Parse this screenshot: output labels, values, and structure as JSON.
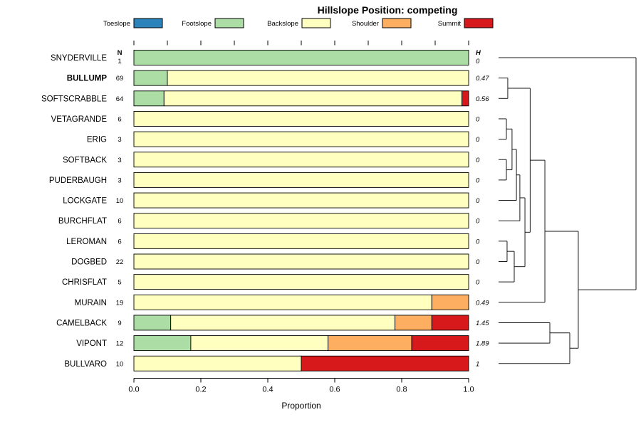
{
  "title": "Hillslope Position: competing",
  "chart_data": {
    "type": "bar",
    "variant": "stacked-horizontal-with-dendrogram",
    "title": "Hillslope Position: competing",
    "xlabel": "Proportion",
    "xlim": [
      0,
      1
    ],
    "xticks": [
      0.0,
      0.2,
      0.4,
      0.6,
      0.8,
      1.0
    ],
    "minor_top_ticks_step": 0.1,
    "legend_position": "top",
    "classes": [
      "Toeslope",
      "Footslope",
      "Backslope",
      "Shoulder",
      "Summit"
    ],
    "class_colors": {
      "Toeslope": "#2B83BA",
      "Footslope": "#ABDDA4",
      "Backslope": "#FFFFBF",
      "Shoulder": "#FDAE61",
      "Summit": "#D7191C"
    },
    "columns": {
      "n_header": "N",
      "h_header": "H"
    },
    "rows": [
      {
        "name": "SNYDERVILLE",
        "n": 1,
        "h": "0",
        "bold": false,
        "segments": [
          {
            "class": "Footslope",
            "value": 1.0
          }
        ]
      },
      {
        "name": "BULLUMP",
        "n": 69,
        "h": "0.47",
        "bold": true,
        "segments": [
          {
            "class": "Footslope",
            "value": 0.1
          },
          {
            "class": "Backslope",
            "value": 0.9
          }
        ]
      },
      {
        "name": "SOFTSCRABBLE",
        "n": 64,
        "h": "0.56",
        "bold": false,
        "segments": [
          {
            "class": "Footslope",
            "value": 0.09
          },
          {
            "class": "Backslope",
            "value": 0.89
          },
          {
            "class": "Summit",
            "value": 0.02
          }
        ]
      },
      {
        "name": "VETAGRANDE",
        "n": 6,
        "h": "0",
        "bold": false,
        "segments": [
          {
            "class": "Backslope",
            "value": 1.0
          }
        ]
      },
      {
        "name": "ERIG",
        "n": 3,
        "h": "0",
        "bold": false,
        "segments": [
          {
            "class": "Backslope",
            "value": 1.0
          }
        ]
      },
      {
        "name": "SOFTBACK",
        "n": 3,
        "h": "0",
        "bold": false,
        "segments": [
          {
            "class": "Backslope",
            "value": 1.0
          }
        ]
      },
      {
        "name": "PUDERBAUGH",
        "n": 3,
        "h": "0",
        "bold": false,
        "segments": [
          {
            "class": "Backslope",
            "value": 1.0
          }
        ]
      },
      {
        "name": "LOCKGATE",
        "n": 10,
        "h": "0",
        "bold": false,
        "segments": [
          {
            "class": "Backslope",
            "value": 1.0
          }
        ]
      },
      {
        "name": "BURCHFLAT",
        "n": 6,
        "h": "0",
        "bold": false,
        "segments": [
          {
            "class": "Backslope",
            "value": 1.0
          }
        ]
      },
      {
        "name": "LEROMAN",
        "n": 6,
        "h": "0",
        "bold": false,
        "segments": [
          {
            "class": "Backslope",
            "value": 1.0
          }
        ]
      },
      {
        "name": "DOGBED",
        "n": 22,
        "h": "0",
        "bold": false,
        "segments": [
          {
            "class": "Backslope",
            "value": 1.0
          }
        ]
      },
      {
        "name": "CHRISFLAT",
        "n": 5,
        "h": "0",
        "bold": false,
        "segments": [
          {
            "class": "Backslope",
            "value": 1.0
          }
        ]
      },
      {
        "name": "MURAIN",
        "n": 19,
        "h": "0.49",
        "bold": false,
        "segments": [
          {
            "class": "Backslope",
            "value": 0.89
          },
          {
            "class": "Shoulder",
            "value": 0.11
          }
        ]
      },
      {
        "name": "CAMELBACK",
        "n": 9,
        "h": "1.45",
        "bold": false,
        "segments": [
          {
            "class": "Footslope",
            "value": 0.11
          },
          {
            "class": "Backslope",
            "value": 0.67
          },
          {
            "class": "Shoulder",
            "value": 0.11
          },
          {
            "class": "Summit",
            "value": 0.11
          }
        ]
      },
      {
        "name": "VIPONT",
        "n": 12,
        "h": "1.89",
        "bold": false,
        "segments": [
          {
            "class": "Footslope",
            "value": 0.17
          },
          {
            "class": "Backslope",
            "value": 0.41
          },
          {
            "class": "Shoulder",
            "value": 0.25
          },
          {
            "class": "Summit",
            "value": 0.17
          }
        ]
      },
      {
        "name": "BULLVARO",
        "n": 10,
        "h": "1",
        "bold": false,
        "segments": [
          {
            "class": "Backslope",
            "value": 0.5
          },
          {
            "class": "Summit",
            "value": 0.5
          }
        ]
      }
    ],
    "dendrogram": {
      "merges": [
        {
          "id": "A",
          "a": "BULLUMP",
          "b": "SOFTSCRABBLE",
          "h": 0.067
        },
        {
          "id": "B",
          "a": "VETAGRANDE",
          "b": "ERIG",
          "h": 0.057
        },
        {
          "id": "C",
          "a": "SOFTBACK",
          "b": "PUDERBAUGH",
          "h": 0.057
        },
        {
          "id": "D",
          "a": "B",
          "b": "C",
          "h": 0.098
        },
        {
          "id": "E",
          "a": "D",
          "b": "LOCKGATE",
          "h": 0.13
        },
        {
          "id": "F",
          "a": "LEROMAN",
          "b": "DOGBED",
          "h": 0.062
        },
        {
          "id": "G",
          "a": "F",
          "b": "CHRISFLAT",
          "h": 0.114
        },
        {
          "id": "H",
          "a": "E",
          "b": "BURCHFLAT",
          "h": 0.155
        },
        {
          "id": "I",
          "a": "H",
          "b": "G",
          "h": 0.192
        },
        {
          "id": "J",
          "a": "A",
          "b": "I",
          "h": 0.23
        },
        {
          "id": "L",
          "a": "J",
          "b": "MURAIN",
          "h": 0.337
        },
        {
          "id": "K",
          "a": "CAMELBACK",
          "b": "VIPONT",
          "h": 0.373
        },
        {
          "id": "M",
          "a": "K",
          "b": "BULLVARO",
          "h": 0.518
        },
        {
          "id": "N2",
          "a": "L",
          "b": "M",
          "h": 0.58
        },
        {
          "id": "ROOT",
          "a": "SNYDERVILLE",
          "b": "N2",
          "h": 1.0
        }
      ]
    }
  }
}
